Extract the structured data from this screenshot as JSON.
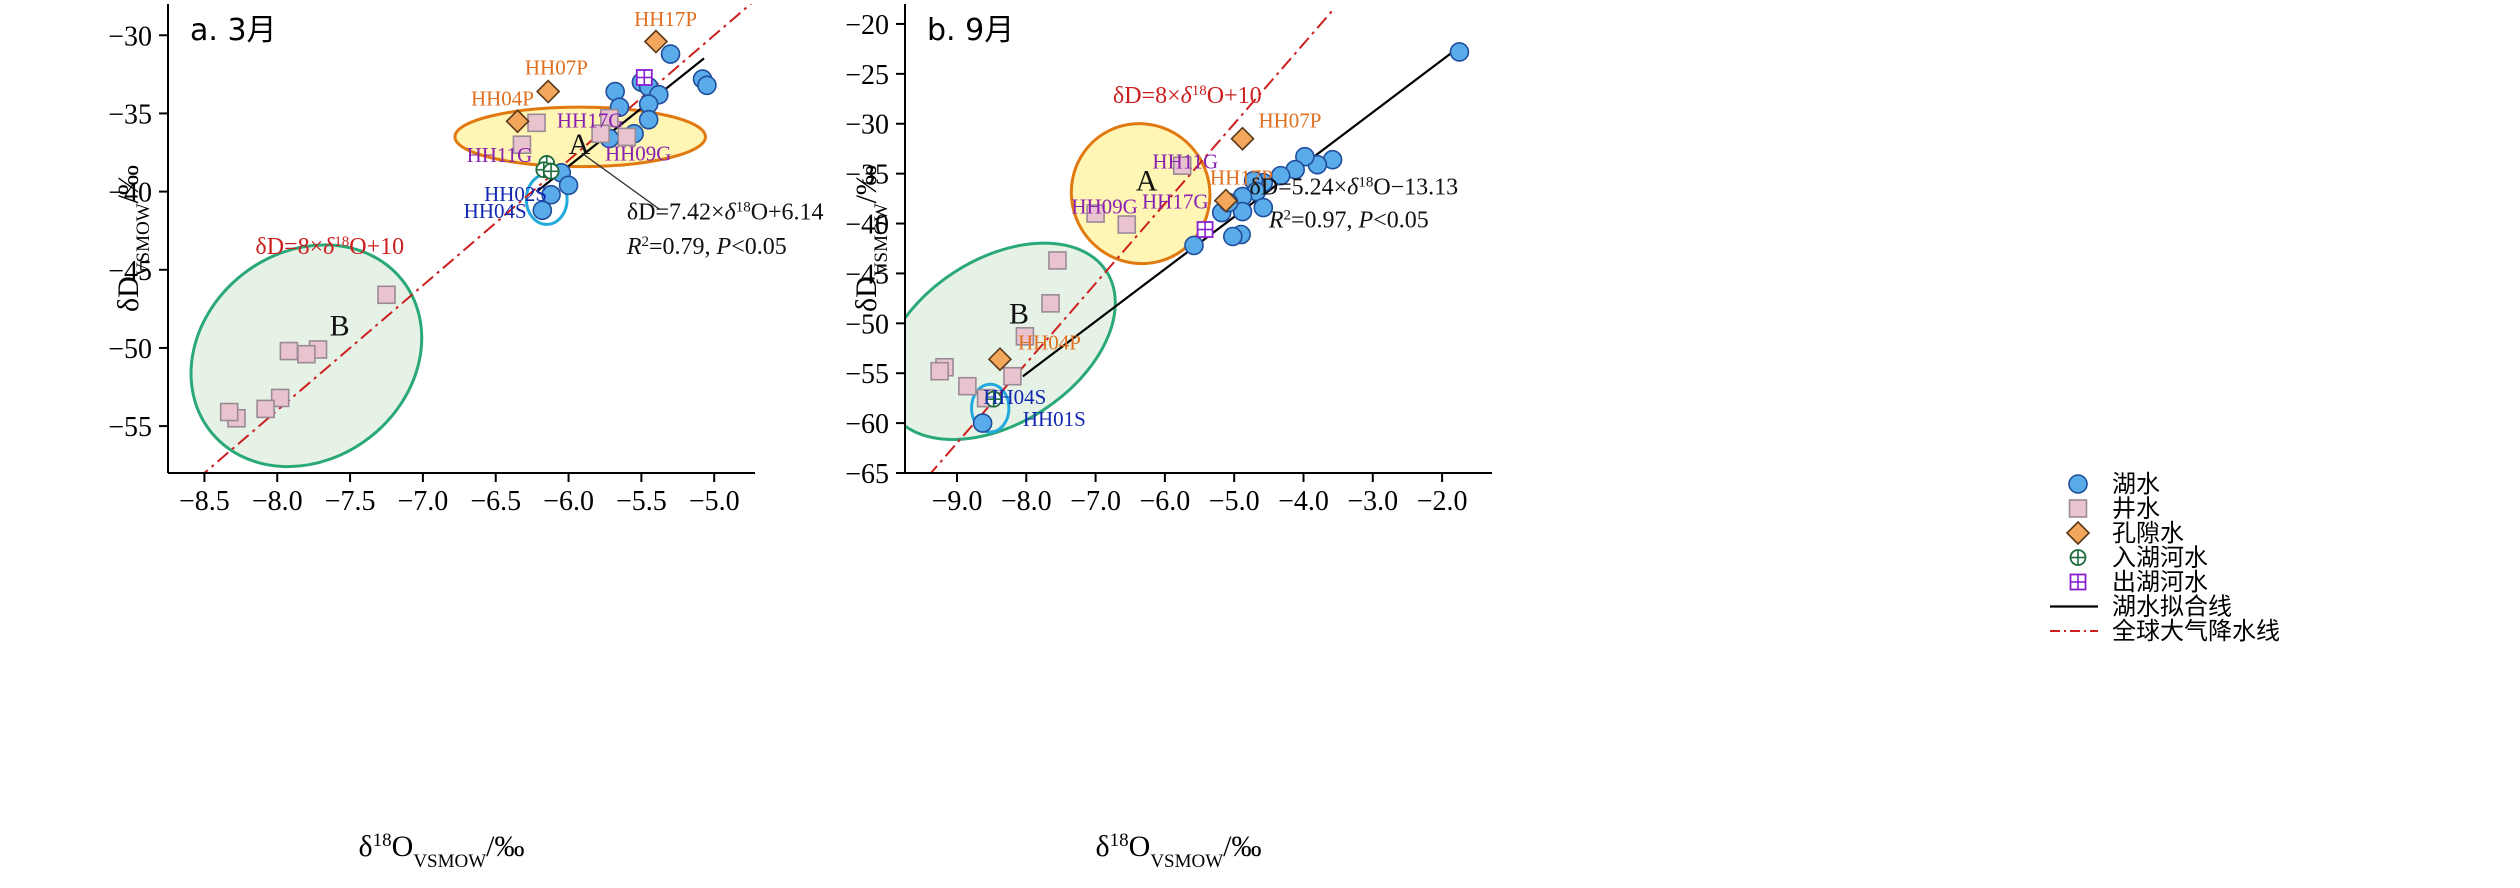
{
  "colors": {
    "lake": "#5aabea",
    "lake_edge": "#1f4e9c",
    "well": "#e9c4cf",
    "well_edge": "#9a8a96",
    "pore": "#f3a75c",
    "pore_edge": "#5a3818",
    "inlet": "#1d6b3a",
    "outlet": "#8a1fd0",
    "gmwl": "#cc2020",
    "fit": "#000000",
    "label_orange": "#e07020",
    "label_purple": "#8a1fb0",
    "label_blue": "#1228b0",
    "ellipse_orange": "#e07a10",
    "ellipse_fill_orange": "#fff3a8",
    "ellipse_green": "#2aa878",
    "ellipse_fill_green": "#e3f0e3",
    "ellipse_blue": "#22aadd"
  },
  "chart_data": [
    {
      "type": "scatter",
      "panel_label": "a. 3月",
      "xlabel": {
        "main": "δ",
        "sup": "18",
        "base": "O",
        "sub": "VSMOW",
        "tail": "/‰"
      },
      "ylabel": {
        "main": "δD",
        "sub": "VSMOW",
        "tail": "/‰"
      },
      "xlim": [
        -8.75,
        -4.72
      ],
      "ylim": [
        -58,
        -28
      ],
      "xticks": [
        -8.5,
        -8.0,
        -7.5,
        -7.0,
        -6.5,
        -6.0,
        -5.5,
        -5.0
      ],
      "xtick_labels": [
        "-8.5",
        "-8.0",
        "-7.5",
        "-7.0",
        "-6.5",
        "-6.0",
        "-5.5",
        "-5.0"
      ],
      "yticks": [
        -55,
        -50,
        -45,
        -40,
        -35,
        -30
      ],
      "ytick_labels": [
        "-55",
        "-50",
        "-45",
        "-40",
        "-35",
        "-30"
      ],
      "series": [
        {
          "kind": "lake",
          "points": [
            [
              -5.3,
              -31.2
            ],
            [
              -5.08,
              -32.8
            ],
            [
              -5.05,
              -33.2
            ],
            [
              -5.5,
              -33.0
            ],
            [
              -5.45,
              -33.3
            ],
            [
              -5.68,
              -33.6
            ],
            [
              -5.38,
              -33.8
            ],
            [
              -5.45,
              -34.4
            ],
            [
              -5.65,
              -34.6
            ],
            [
              -5.45,
              -35.4
            ],
            [
              -5.55,
              -36.3
            ],
            [
              -5.72,
              -36.6
            ],
            [
              -6.05,
              -38.8
            ],
            [
              -6.0,
              -39.6
            ],
            [
              -6.12,
              -40.2
            ],
            [
              -6.18,
              -41.2
            ]
          ]
        },
        {
          "kind": "well",
          "points": [
            [
              -6.22,
              -35.6
            ],
            [
              -6.32,
              -37.0
            ],
            [
              -5.6,
              -36.5
            ],
            [
              -5.72,
              -35.3
            ],
            [
              -5.78,
              -36.3
            ],
            [
              -7.25,
              -46.6
            ],
            [
              -7.72,
              -50.1
            ],
            [
              -7.8,
              -50.4
            ],
            [
              -7.92,
              -50.2
            ],
            [
              -7.98,
              -53.2
            ],
            [
              -8.08,
              -53.9
            ],
            [
              -8.28,
              -54.5
            ],
            [
              -8.33,
              -54.1
            ]
          ]
        },
        {
          "kind": "pore",
          "points": [
            [
              -5.4,
              -30.4
            ],
            [
              -6.14,
              -33.6
            ],
            [
              -6.35,
              -35.5
            ]
          ]
        },
        {
          "kind": "inlet",
          "points": [
            [
              -6.15,
              -38.2
            ],
            [
              -6.17,
              -38.6
            ],
            [
              -6.12,
              -38.7
            ]
          ]
        },
        {
          "kind": "outlet",
          "points": [
            [
              -5.48,
              -32.7
            ]
          ]
        }
      ],
      "fit_line": {
        "x": [
          -6.22,
          -5.07
        ],
        "slope": 7.42,
        "intercept": 6.14
      },
      "gmwl": {
        "x": [
          -8.55,
          -4.72
        ],
        "slope": 8,
        "intercept": 10
      },
      "ellipses": [
        {
          "cx": -5.92,
          "cy": -36.5,
          "rx": 0.86,
          "ry": 1.9,
          "color_key": "ellipse_orange",
          "fill_key": "ellipse_fill_orange"
        },
        {
          "cx": -7.8,
          "cy": -50.5,
          "rx": 0.72,
          "ry": 5.2,
          "tilt": 38,
          "color_key": "ellipse_green",
          "fill_key": "ellipse_fill_green"
        },
        {
          "cx": -6.15,
          "cy": -40.5,
          "rx": 0.14,
          "ry": 1.6,
          "color_key": "ellipse_blue",
          "fill_key": null
        }
      ],
      "point_labels": [
        {
          "text": "HH17P",
          "x": -5.55,
          "y": -29.4,
          "color_key": "label_orange"
        },
        {
          "text": "HH07P",
          "x": -6.3,
          "y": -32.5,
          "color_key": "label_orange"
        },
        {
          "text": "HH04P",
          "x": -6.67,
          "y": -34.5,
          "color_key": "label_orange"
        },
        {
          "text": "HH17G",
          "x": -6.08,
          "y": -35.9,
          "color_key": "label_purple"
        },
        {
          "text": "HH11G",
          "x": -6.7,
          "y": -38.1,
          "color_key": "label_purple"
        },
        {
          "text": "HH09G",
          "x": -5.75,
          "y": -38.0,
          "color_key": "label_purple"
        },
        {
          "text": "HH02S",
          "x": -6.58,
          "y": -40.6,
          "color_key": "label_blue"
        },
        {
          "text": "HH04S",
          "x": -6.72,
          "y": -41.7,
          "color_key": "label_blue"
        }
      ],
      "region_labels": [
        {
          "text": "A",
          "x": -6.0,
          "y": -37.6
        },
        {
          "text": "B",
          "x": -7.64,
          "y": -49.2
        }
      ],
      "annotations": {
        "gmwl_eq": {
          "x": -8.15,
          "y": -44.0,
          "color_key": "gmwl",
          "parts": [
            "δD=8×",
            "δ",
            "18",
            "O+10"
          ]
        },
        "fit_eq": {
          "x": -5.6,
          "y": -41.8,
          "parts": [
            "δD=7.42×",
            "δ",
            "18",
            "O+6.14"
          ]
        },
        "fit_r2": {
          "x": -5.6,
          "y": -44.0,
          "parts": [
            "R",
            "2",
            "=0.79, ",
            "P",
            "<0.05"
          ]
        },
        "arrow": {
          "from": [
            -5.38,
            -41.1
          ],
          "to": [
            -5.9,
            -37.6
          ]
        }
      }
    },
    {
      "type": "scatter",
      "panel_label": "b. 9月",
      "xlabel": {
        "main": "δ",
        "sup": "18",
        "base": "O",
        "sub": "VSMOW",
        "tail": "/‰"
      },
      "ylabel": {
        "main": "δD",
        "sub": "VSMOW",
        "tail": "/‰"
      },
      "xlim": [
        -9.75,
        -1.28
      ],
      "ylim": [
        -65,
        -18
      ],
      "xticks": [
        -9.0,
        -8.0,
        -7.0,
        -6.0,
        -5.0,
        -4.0,
        -3.0,
        -2.0
      ],
      "xtick_labels": [
        "-9.0",
        "-8.0",
        "-7.0",
        "-6.0",
        "-5.0",
        "-4.0",
        "-3.0",
        "-2.0"
      ],
      "yticks": [
        -65,
        -60,
        -55,
        -50,
        -45,
        -40,
        -35,
        -30,
        -25,
        -20
      ],
      "ytick_labels": [
        "-65",
        "-60",
        "-55",
        "-50",
        "-45",
        "-40",
        "-35",
        "-30",
        "-25",
        "-20"
      ],
      "series": [
        {
          "kind": "lake",
          "points": [
            [
              -1.75,
              -22.8
            ],
            [
              -3.58,
              -33.6
            ],
            [
              -3.8,
              -34.1
            ],
            [
              -3.98,
              -33.3
            ],
            [
              -4.12,
              -34.6
            ],
            [
              -4.33,
              -35.2
            ],
            [
              -4.58,
              -35.9
            ],
            [
              -4.72,
              -35.7
            ],
            [
              -4.68,
              -36.8
            ],
            [
              -4.88,
              -37.3
            ],
            [
              -4.58,
              -38.4
            ],
            [
              -4.88,
              -38.8
            ],
            [
              -5.18,
              -38.9
            ],
            [
              -5.08,
              -37.9
            ],
            [
              -4.9,
              -41.1
            ],
            [
              -5.02,
              -41.3
            ],
            [
              -5.58,
              -42.2
            ],
            [
              -8.63,
              -60.0
            ]
          ]
        },
        {
          "kind": "well",
          "points": [
            [
              -5.75,
              -34.2
            ],
            [
              -6.55,
              -40.1
            ],
            [
              -7.0,
              -39.0
            ],
            [
              -7.55,
              -43.7
            ],
            [
              -7.65,
              -48.0
            ],
            [
              -8.02,
              -51.3
            ],
            [
              -8.2,
              -55.3
            ],
            [
              -8.58,
              -57.5
            ],
            [
              -8.85,
              -56.3
            ],
            [
              -9.18,
              -54.4
            ],
            [
              -9.25,
              -54.8
            ]
          ]
        },
        {
          "kind": "pore",
          "points": [
            [
              -4.88,
              -31.5
            ],
            [
              -5.12,
              -37.7
            ],
            [
              -8.38,
              -53.6
            ]
          ]
        },
        {
          "kind": "inlet",
          "points": [
            [
              -8.47,
              -57.6
            ]
          ]
        },
        {
          "kind": "outlet",
          "points": [
            [
              -5.42,
              -40.6
            ]
          ]
        }
      ],
      "fit_line": {
        "x": [
          -8.05,
          -1.78
        ],
        "slope": 5.24,
        "intercept": -13.13
      },
      "gmwl": {
        "x": [
          -9.42,
          -3.56
        ],
        "slope": 8,
        "intercept": 10
      },
      "ellipses": [
        {
          "cx": -6.35,
          "cy": -37.0,
          "rx": 0.72,
          "ry": 5.6,
          "tilt": 32,
          "color_key": "ellipse_orange",
          "fill_key": "ellipse_fill_orange"
        },
        {
          "cx": -8.4,
          "cy": -51.8,
          "rx": 0.88,
          "ry": 12.6,
          "tilt": 33,
          "color_key": "ellipse_green",
          "fill_key": "ellipse_fill_green"
        },
        {
          "cx": -8.52,
          "cy": -58.5,
          "rx": 0.27,
          "ry": 2.4,
          "color_key": "ellipse_blue",
          "fill_key": null
        }
      ],
      "point_labels": [
        {
          "text": "HH07P",
          "x": -4.65,
          "y": -30.4,
          "color_key": "label_orange"
        },
        {
          "text": "HH17P",
          "x": -5.35,
          "y": -36.1,
          "color_key": "label_orange"
        },
        {
          "text": "HH04P",
          "x": -8.12,
          "y": -52.6,
          "color_key": "label_orange"
        },
        {
          "text": "HH11G",
          "x": -6.18,
          "y": -34.5,
          "color_key": "label_purple"
        },
        {
          "text": "HH17G",
          "x": -6.33,
          "y": -38.5,
          "color_key": "label_purple"
        },
        {
          "text": "HH09G",
          "x": -7.35,
          "y": -39.0,
          "color_key": "label_purple"
        },
        {
          "text": "HH04S",
          "x": -8.62,
          "y": -58.1,
          "color_key": "label_blue"
        },
        {
          "text": "HH01S",
          "x": -8.05,
          "y": -60.3,
          "color_key": "label_blue"
        }
      ],
      "region_labels": [
        {
          "text": "A",
          "x": -6.42,
          "y": -36.7
        },
        {
          "text": "B",
          "x": -8.25,
          "y": -50.0
        }
      ],
      "annotations": {
        "gmwl_eq": {
          "x": -6.75,
          "y": -27.9,
          "color_key": "gmwl",
          "parts": [
            "δD=8×",
            "δ",
            "18",
            "O+10"
          ]
        },
        "fit_eq": {
          "x": -4.78,
          "y": -37.1,
          "parts": [
            "δD=5.24×",
            "δ",
            "18",
            "O-13.13"
          ]
        },
        "fit_r2": {
          "x": -4.5,
          "y": -40.4,
          "parts": [
            "R",
            "2",
            "=0.97, ",
            "P",
            "<0.05"
          ]
        }
      },
      "legend": {
        "placement": "bottom-right",
        "items": [
          {
            "kind": "lake",
            "label": "湖水"
          },
          {
            "kind": "well",
            "label": "井水"
          },
          {
            "kind": "pore",
            "label": "孔隙水"
          },
          {
            "kind": "inlet",
            "label": "入湖河水"
          },
          {
            "kind": "outlet",
            "label": "出湖河水"
          },
          {
            "kind": "fit",
            "label": "湖水拟合线"
          },
          {
            "kind": "gmwl",
            "label": "全球大气降水线"
          }
        ]
      }
    }
  ]
}
